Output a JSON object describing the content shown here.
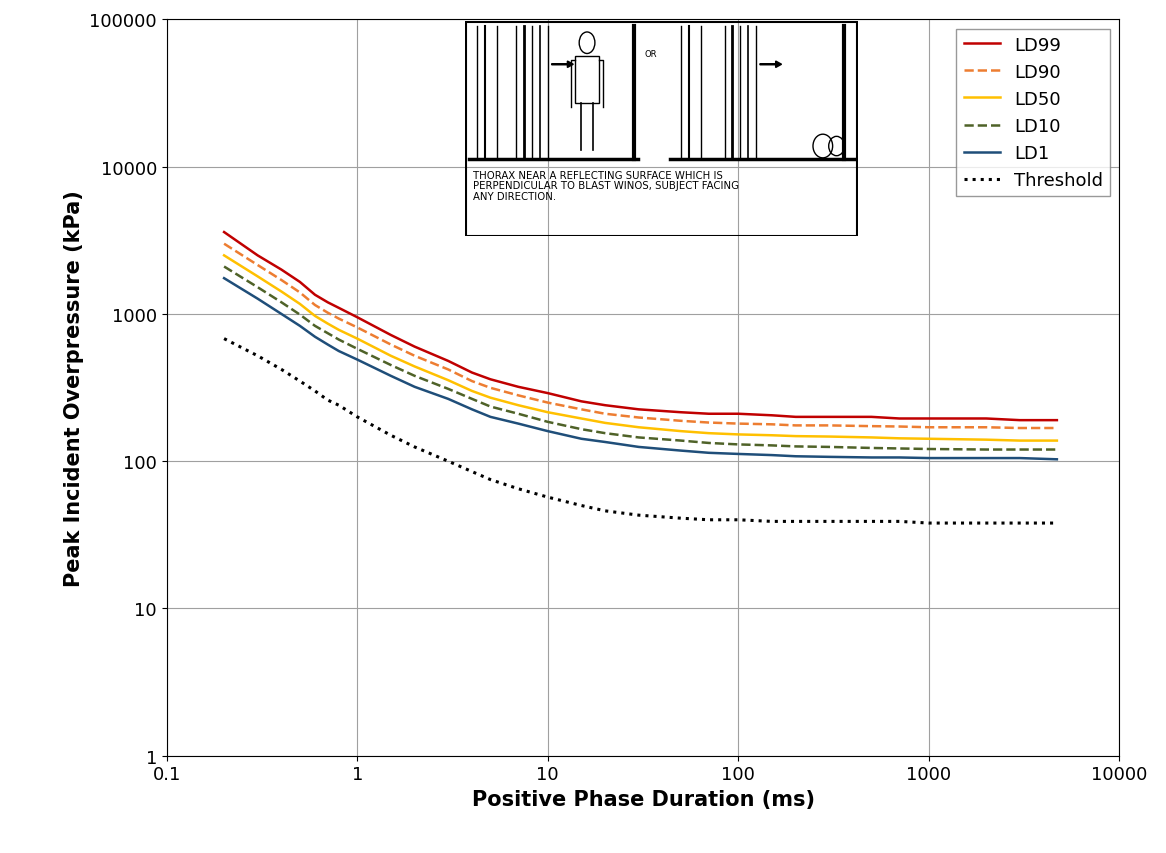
{
  "chart_data": {
    "type": "line",
    "x_label": "Positive Phase Duration (ms)",
    "y_label": "Peak Incident Overpressure (kPa)",
    "annotations": [
      "OR",
      "THORAX NEAR A REFLECTING SURFACE WHICH IS\nPERPENDICULAR TO BLAST WINOS, SUBJECT FACING\nANY DIRECTION."
    ],
    "log": true,
    "grid": true,
    "legend": "upper right",
    "xlim": [
      0.1,
      10000
    ],
    "ylim": [
      1,
      100000
    ],
    "xticks": [
      0.1,
      1,
      10,
      100,
      1000,
      10000
    ],
    "yticks": [
      1,
      10,
      100,
      1000,
      10000,
      100000
    ],
    "x": [
      0.2,
      0.3,
      0.4,
      0.5,
      0.6,
      0.7,
      0.8,
      1,
      1.5,
      2,
      3,
      4,
      5,
      7,
      10,
      15,
      20,
      30,
      50,
      70,
      100,
      150,
      200,
      300,
      500,
      700,
      1000,
      2000,
      3000,
      4700
    ],
    "series": [
      {
        "name": "LD99",
        "color": "#c00000",
        "line_style": "solid",
        "values": [
          3600,
          2500,
          2000,
          1650,
          1350,
          1200,
          1100,
          950,
          720,
          600,
          480,
          400,
          360,
          320,
          290,
          255,
          240,
          225,
          215,
          210,
          210,
          205,
          200,
          200,
          200,
          195,
          195,
          195,
          190,
          190
        ]
      },
      {
        "name": "LD90",
        "color": "#ed7d31",
        "line_style": "dashed",
        "values": [
          3000,
          2150,
          1700,
          1400,
          1150,
          1020,
          930,
          810,
          620,
          520,
          420,
          350,
          315,
          280,
          250,
          225,
          210,
          198,
          188,
          183,
          180,
          178,
          175,
          175,
          173,
          172,
          170,
          170,
          168,
          168
        ]
      },
      {
        "name": "LD50",
        "color": "#ffc000",
        "line_style": "solid",
        "values": [
          2500,
          1800,
          1420,
          1170,
          970,
          860,
          780,
          680,
          520,
          440,
          355,
          300,
          270,
          240,
          215,
          195,
          182,
          170,
          160,
          155,
          152,
          150,
          148,
          147,
          145,
          143,
          142,
          140,
          138,
          138
        ]
      },
      {
        "name": "LD10",
        "color": "#4f6228",
        "line_style": "dashed",
        "values": [
          2100,
          1520,
          1200,
          990,
          830,
          740,
          670,
          580,
          450,
          380,
          310,
          265,
          235,
          210,
          185,
          165,
          155,
          145,
          138,
          133,
          130,
          128,
          126,
          125,
          123,
          122,
          121,
          120,
          120,
          120
        ]
      },
      {
        "name": "LD1",
        "color": "#1f4e79",
        "line_style": "solid",
        "values": [
          1750,
          1270,
          1000,
          830,
          700,
          620,
          560,
          490,
          380,
          320,
          265,
          225,
          200,
          180,
          160,
          142,
          135,
          125,
          118,
          114,
          112,
          110,
          108,
          107,
          106,
          106,
          105,
          105,
          105,
          103
        ]
      },
      {
        "name": "Threshold",
        "color": "#000000",
        "line_style": "dotted",
        "values": [
          680,
          520,
          420,
          350,
          300,
          260,
          240,
          200,
          150,
          125,
          100,
          85,
          75,
          65,
          57,
          50,
          46,
          43,
          41,
          40,
          40,
          39,
          39,
          39,
          39,
          39,
          38,
          38,
          38,
          38
        ]
      }
    ]
  }
}
